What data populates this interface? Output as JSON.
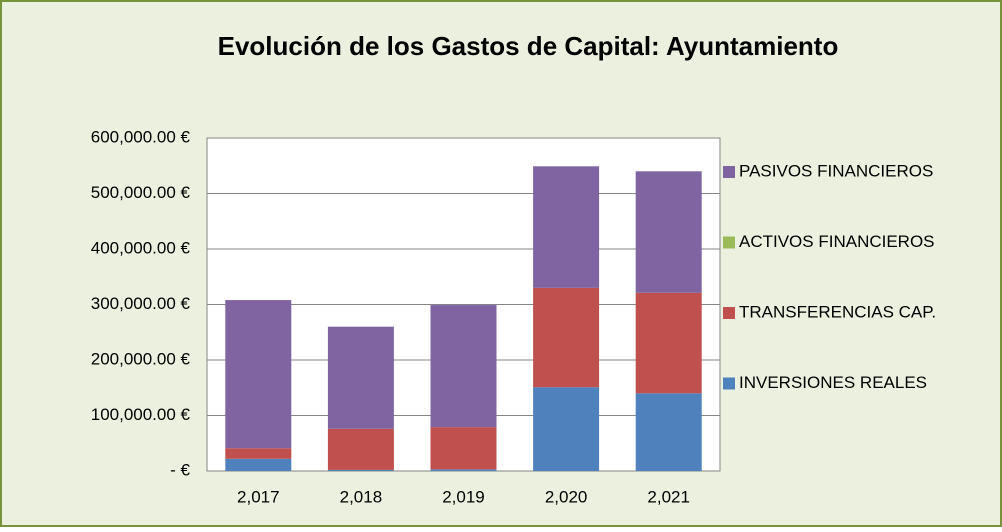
{
  "chart_data": {
    "type": "bar",
    "stacked": true,
    "title": "Evolución de los Gastos de Capital: Ayuntamiento",
    "categories": [
      "2,017",
      "2,018",
      "2,019",
      "2,020",
      "2,021"
    ],
    "series": [
      {
        "name": "INVERSIONES REALES",
        "color": "#4f81bd",
        "values": [
          22000,
          2000,
          3000,
          151000,
          140000
        ]
      },
      {
        "name": "TRANSFERENCIAS CAP.",
        "color": "#c0504d",
        "values": [
          19000,
          74000,
          76000,
          179000,
          181000
        ]
      },
      {
        "name": "ACTIVOS FINANCIEROS",
        "color": "#9bbb59",
        "values": [
          0,
          0,
          0,
          0,
          0
        ]
      },
      {
        "name": "PASIVOS FINANCIEROS",
        "color": "#8064a2",
        "values": [
          267000,
          184000,
          220000,
          219000,
          219000
        ]
      }
    ],
    "ylim": [
      0,
      600000
    ],
    "yticks": [
      {
        "value": 0,
        "label": "-   €"
      },
      {
        "value": 100000,
        "label": "100,000.00 €"
      },
      {
        "value": 200000,
        "label": "200,000.00 €"
      },
      {
        "value": 300000,
        "label": "300,000.00 €"
      },
      {
        "value": 400000,
        "label": "400,000.00 €"
      },
      {
        "value": 500000,
        "label": "500,000.00 €"
      },
      {
        "value": 600000,
        "label": "600,000.00 €"
      }
    ],
    "grid": true,
    "legend": "right"
  }
}
